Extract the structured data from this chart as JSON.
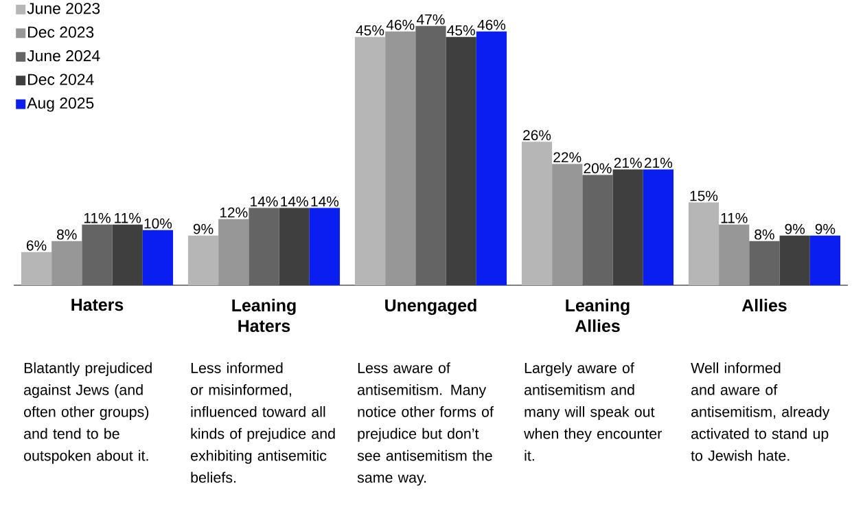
{
  "chart_data": {
    "type": "bar",
    "categories": [
      "Haters",
      "Leaning Haters",
      "Unengaged",
      "Leaning Allies",
      "Allies"
    ],
    "series": [
      {
        "name": "June 2023",
        "color": "#b6b6b6",
        "values": [
          6,
          9,
          45,
          26,
          15
        ],
        "value_labels": [
          "6%",
          "9%",
          "45%",
          "26%",
          "15%"
        ]
      },
      {
        "name": "Dec 2023",
        "color": "#979797",
        "values": [
          8,
          12,
          46,
          22,
          11
        ],
        "value_labels": [
          "8%",
          "12%",
          "46%",
          "22%",
          "11%"
        ]
      },
      {
        "name": "June 2024",
        "color": "#646464",
        "values": [
          11,
          14,
          47,
          20,
          8
        ],
        "value_labels": [
          "11%",
          "14%",
          "47%",
          "20%",
          "8%"
        ]
      },
      {
        "name": "Dec 2024",
        "color": "#3f3f3f",
        "values": [
          11,
          14,
          45,
          21,
          9
        ],
        "value_labels": [
          "11%",
          "14%",
          "45%",
          "21%",
          "9%"
        ]
      },
      {
        "name": "Aug 2025",
        "color": "#0a1ef2",
        "values": [
          10,
          14,
          46,
          21,
          9
        ],
        "value_labels": [
          "10%",
          "14%",
          "46%",
          "21%",
          "9%"
        ]
      }
    ],
    "annotations": [
      "Blatantly prejudiced against Jews (and often other groups) and tend to be outspoken about it.",
      "Less informed or misinformed, influenced toward all kinds of prejudice and exhibiting antisemitic beliefs.",
      "Less aware of antisemitism. Many notice other forms of prejudice but don’t see antisemitism the same way.",
      "Largely aware of antisemitism and many will speak out when they encounter it.",
      "Well informed and aware of antisemitism, already activated to stand up to Jewish hate."
    ],
    "legend": "top left"
  }
}
